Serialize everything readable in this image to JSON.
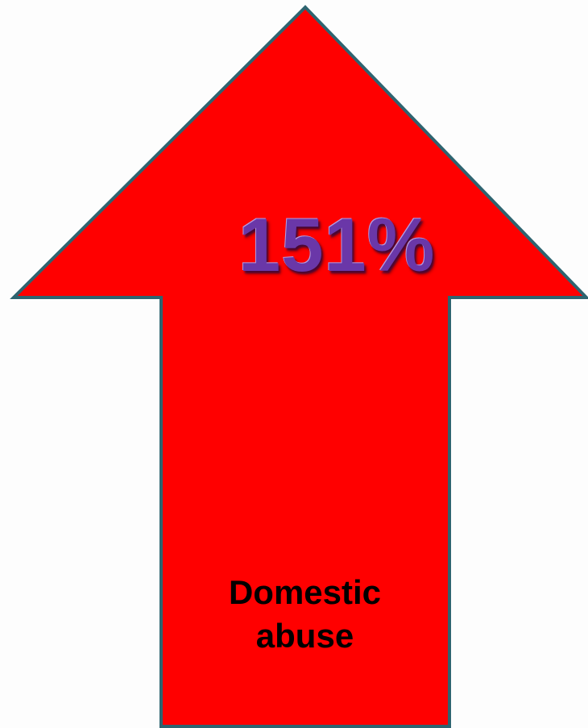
{
  "figure": {
    "value_label": "151%",
    "caption_line_1": "Domestic",
    "caption_line_2": "abuse",
    "direction": "up"
  },
  "colors": {
    "arrow_fill": "#ff0000",
    "arrow_stroke": "#2e6470",
    "value_text": "#6a37a8",
    "caption_text": "#000000",
    "background": "#fdfdfd"
  }
}
